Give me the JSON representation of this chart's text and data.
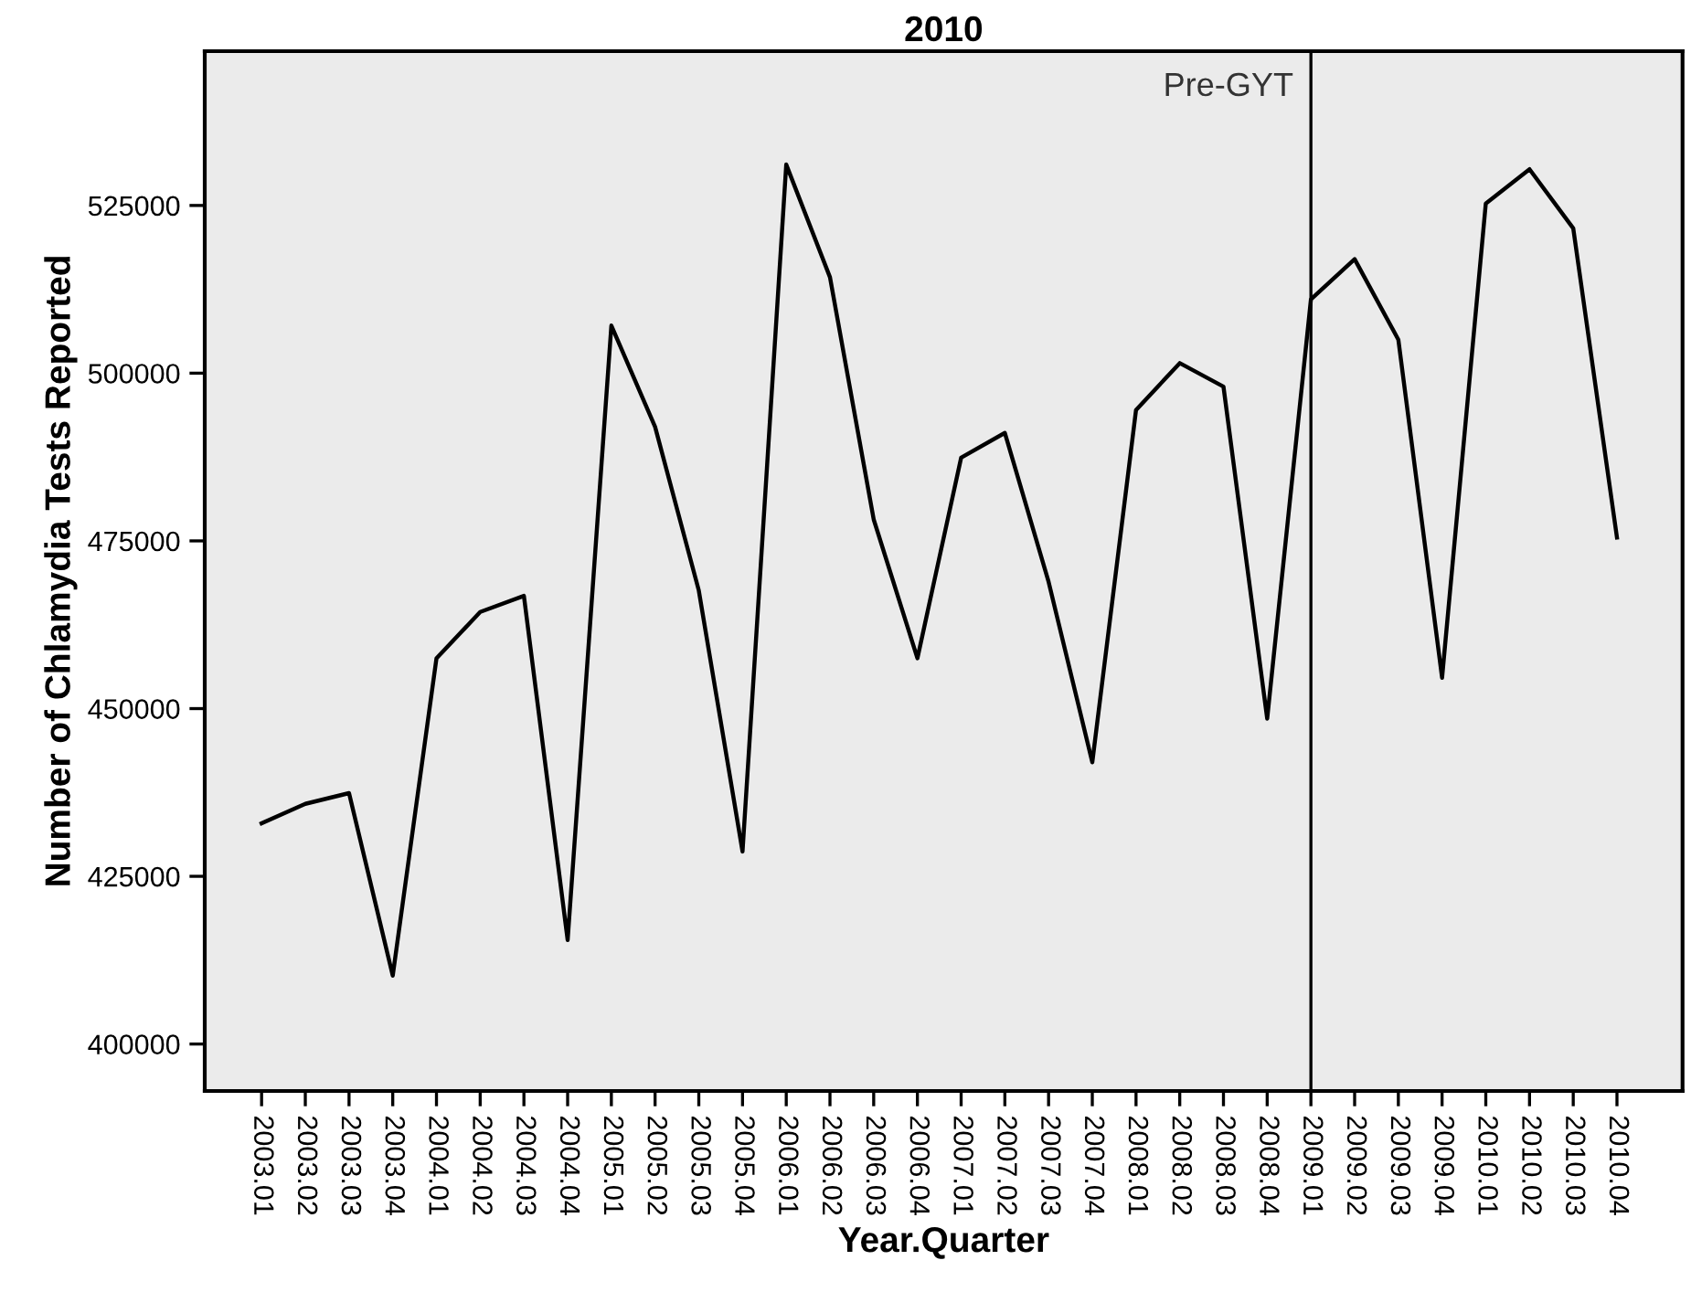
{
  "chart_data": {
    "type": "line",
    "title": "2010",
    "xlabel": "Year.Quarter",
    "ylabel": "Number of Chlamydia Tests Reported",
    "categories": [
      "2003.01",
      "2003.02",
      "2003.03",
      "2003.04",
      "2004.01",
      "2004.02",
      "2004.03",
      "2004.04",
      "2005.01",
      "2005.02",
      "2005.03",
      "2005.04",
      "2006.01",
      "2006.02",
      "2006.03",
      "2006.04",
      "2007.01",
      "2007.02",
      "2007.03",
      "2007.04",
      "2008.01",
      "2008.02",
      "2008.03",
      "2008.04",
      "2009.01",
      "2009.02",
      "2009.03",
      "2009.04",
      "2010.01",
      "2010.02",
      "2010.03",
      "2010.04"
    ],
    "series": [
      {
        "color": "#000000",
        "values": [
          432900,
          435800,
          437400,
          410200,
          457500,
          464400,
          466800,
          415500,
          507100,
          492000,
          467600,
          428700,
          531100,
          514300,
          478200,
          457500,
          487400,
          491100,
          468900,
          442000,
          494500,
          501500,
          498000,
          448500,
          511000,
          517000,
          505000,
          454600,
          525300,
          530400,
          521600,
          475500
        ]
      }
    ],
    "ylim": [
      393000,
      548000
    ],
    "yticks": [
      400000,
      425000,
      450000,
      475000,
      500000,
      525000
    ],
    "ref_lines": [
      {
        "axis": "x",
        "value": "2009.01",
        "label": "Pre-GYT",
        "color": "#000000"
      }
    ],
    "grid": false,
    "marker": "none",
    "line_style": "solid"
  }
}
